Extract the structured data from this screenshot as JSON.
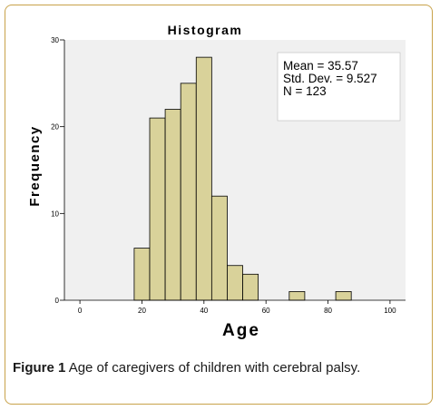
{
  "chart_data": {
    "type": "bar",
    "title": "Histogram",
    "xlabel": "Age",
    "ylabel": "Frequency",
    "xlim": [
      -5,
      105
    ],
    "ylim": [
      0,
      30
    ],
    "xticks": [
      0,
      20,
      40,
      60,
      80,
      100
    ],
    "yticks": [
      0,
      10,
      20,
      30
    ],
    "bin_width": 5,
    "bins": [
      {
        "start": 17.5,
        "end": 22.5,
        "count": 6
      },
      {
        "start": 22.5,
        "end": 27.5,
        "count": 21
      },
      {
        "start": 27.5,
        "end": 32.5,
        "count": 22
      },
      {
        "start": 32.5,
        "end": 37.5,
        "count": 25
      },
      {
        "start": 37.5,
        "end": 42.5,
        "count": 28
      },
      {
        "start": 42.5,
        "end": 47.5,
        "count": 12
      },
      {
        "start": 47.5,
        "end": 52.5,
        "count": 4
      },
      {
        "start": 52.5,
        "end": 57.5,
        "count": 3
      },
      {
        "start": 67.5,
        "end": 72.5,
        "count": 1
      },
      {
        "start": 82.5,
        "end": 87.5,
        "count": 1
      }
    ],
    "stats": [
      "Mean = 35.57",
      "Std. Dev. = 9.527",
      "N = 123"
    ],
    "bar_color": "#d9d29a",
    "plot_background": "#f0f0f0"
  },
  "caption": {
    "label": "Figure 1",
    "text": " Age of caregivers of children with cerebral palsy."
  }
}
